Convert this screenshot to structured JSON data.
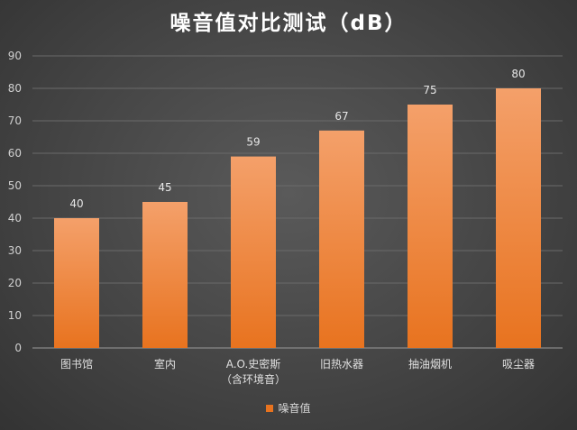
{
  "chart_data": {
    "type": "bar",
    "title": "噪音值对比测试（dB）",
    "categories": [
      "图书馆",
      "室内",
      "A.O.史密斯\n（含环境音）",
      "旧热水器",
      "抽油烟机",
      "吸尘器"
    ],
    "series": [
      {
        "name": "噪音值",
        "values": [
          40,
          45,
          59,
          67,
          75,
          80
        ]
      }
    ],
    "ylim": [
      0,
      90
    ],
    "yticks": [
      0,
      10,
      20,
      30,
      40,
      50,
      60,
      70,
      80,
      90
    ],
    "grid": true,
    "legend": "bottom",
    "data_labels": true,
    "colors": {
      "bar_top": "#f4a06a",
      "bar_bottom": "#e8731f",
      "gridline": "#6a6a6a",
      "axis": "#9a9a9a"
    }
  }
}
